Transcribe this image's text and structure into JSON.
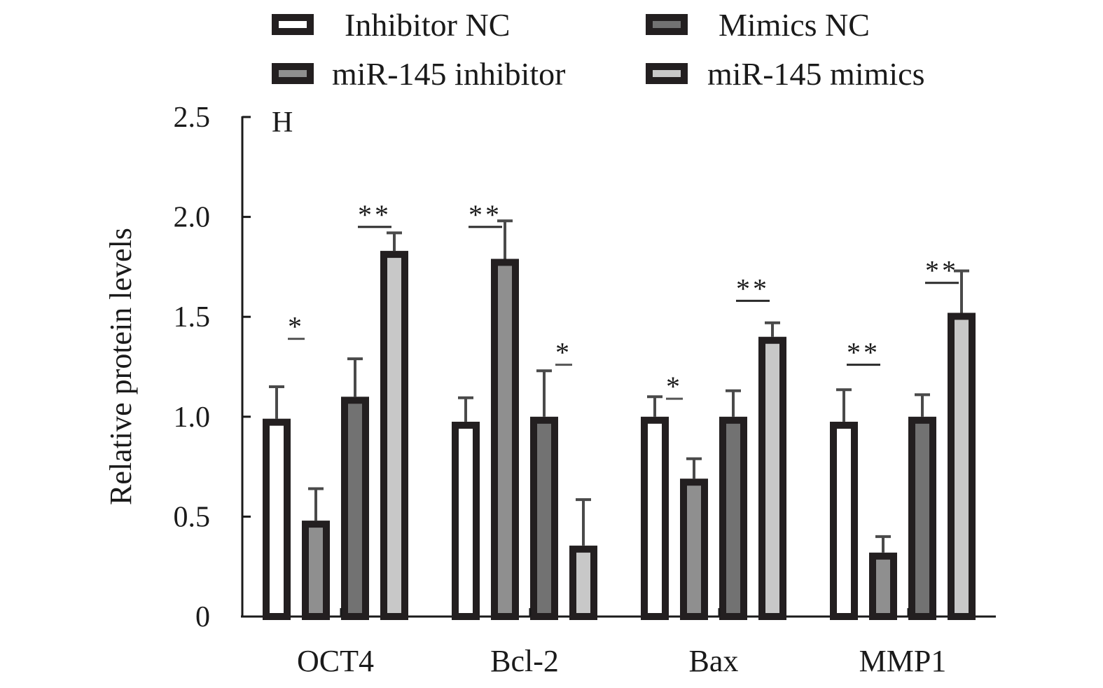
{
  "chart_data": {
    "type": "bar",
    "panel_label": "H",
    "title": "",
    "xlabel": "",
    "ylabel": "Relative protein levels",
    "ylim": [
      0,
      2.5
    ],
    "yticks": [
      0,
      0.5,
      1.0,
      1.5,
      2.0,
      2.5
    ],
    "ytick_labels": [
      "0",
      "0.5",
      "1.0",
      "1.5",
      "2.0",
      "2.5"
    ],
    "grid": false,
    "legend_position": "top",
    "categories": [
      "OCT4",
      "Bcl-2",
      "Bax",
      "MMP1"
    ],
    "series": [
      {
        "name": "Inhibitor NC",
        "color": "#ffffff",
        "values": [
          0.99,
          0.975,
          1.0,
          0.975
        ],
        "errors": [
          0.16,
          0.12,
          0.1,
          0.16
        ]
      },
      {
        "name": "miR-145 inhibitor",
        "color": "#8f8f8f",
        "values": [
          0.48,
          1.79,
          0.69,
          0.32
        ],
        "errors": [
          0.16,
          0.19,
          0.1,
          0.08
        ]
      },
      {
        "name": "Mimics NC",
        "color": "#727272",
        "values": [
          1.1,
          1.0,
          1.0,
          1.0
        ],
        "errors": [
          0.19,
          0.23,
          0.13,
          0.11
        ]
      },
      {
        "name": "miR-145 mimics",
        "color": "#c8c8c8",
        "values": [
          1.83,
          0.355,
          1.4,
          1.52
        ],
        "errors": [
          0.09,
          0.23,
          0.07,
          0.21
        ]
      }
    ],
    "legend_order": [
      0,
      2,
      1,
      3
    ],
    "significance": [
      {
        "category": "OCT4",
        "pair": [
          0,
          1
        ],
        "label": "*",
        "level": 1.39
      },
      {
        "category": "OCT4",
        "pair": [
          2,
          3
        ],
        "label": "**",
        "level": 1.95
      },
      {
        "category": "Bcl-2",
        "pair": [
          0,
          1
        ],
        "label": "**",
        "level": 1.95
      },
      {
        "category": "Bcl-2",
        "pair": [
          2,
          3
        ],
        "label": "*",
        "level": 1.26
      },
      {
        "category": "Bax",
        "pair": [
          0,
          1
        ],
        "label": "*",
        "level": 1.09
      },
      {
        "category": "Bax",
        "pair": [
          2,
          3
        ],
        "label": "**",
        "level": 1.58
      },
      {
        "category": "MMP1",
        "pair": [
          0,
          1
        ],
        "label": "**",
        "level": 1.26
      },
      {
        "category": "MMP1",
        "pair": [
          2,
          3
        ],
        "label": "**",
        "level": 1.67
      }
    ]
  }
}
